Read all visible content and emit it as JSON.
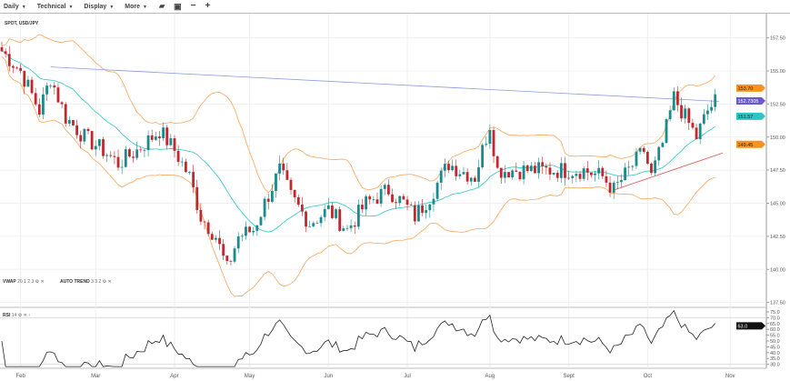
{
  "toolbar": {
    "menus": [
      "Daily",
      "Technical",
      "Display",
      "More"
    ],
    "icons": [
      "folder-open-icon",
      "save-icon",
      "zoom-out-icon",
      "zoom-in-icon"
    ]
  },
  "chart_data": {
    "type": "candlestick",
    "title": "SPOT, USD/JPY",
    "price_axis": {
      "ticks": [
        "157.50",
        "155.00",
        "152.50",
        "150.00",
        "147.50",
        "145.00",
        "142.50",
        "140.00",
        "137.50"
      ],
      "values": [
        157.5,
        155,
        152.5,
        150,
        147.5,
        145,
        142.5,
        140,
        137.5
      ]
    },
    "x_ticks": [
      "Feb",
      "Mar",
      "Apr",
      "May",
      "Jun",
      "Jul",
      "Aug",
      "Sept",
      "Oct",
      "Nov"
    ],
    "x_tick_days": [
      5,
      25,
      46,
      66,
      87,
      108,
      130,
      151,
      172,
      194
    ],
    "close_keypoints": [
      [
        0,
        156.5
      ],
      [
        5,
        155
      ],
      [
        10,
        152
      ],
      [
        13,
        154.5
      ],
      [
        17,
        151.5
      ],
      [
        22,
        150
      ],
      [
        27,
        149
      ],
      [
        31,
        148
      ],
      [
        36,
        149
      ],
      [
        42,
        150.5
      ],
      [
        46,
        149
      ],
      [
        50,
        147
      ],
      [
        53,
        144
      ],
      [
        57,
        142.5
      ],
      [
        60,
        140
      ],
      [
        63,
        142.5
      ],
      [
        67,
        143
      ],
      [
        70,
        145
      ],
      [
        74,
        147.5
      ],
      [
        77,
        145.5
      ],
      [
        82,
        143.5
      ],
      [
        87,
        144.5
      ],
      [
        92,
        143
      ],
      [
        97,
        145
      ],
      [
        103,
        146
      ],
      [
        107,
        145
      ],
      [
        110,
        144
      ],
      [
        114,
        145.5
      ],
      [
        119,
        148
      ],
      [
        122,
        147.5
      ],
      [
        126,
        147
      ],
      [
        130,
        151
      ],
      [
        132,
        147.5
      ],
      [
        140,
        147.5
      ],
      [
        148,
        147.5
      ],
      [
        155,
        147.5
      ],
      [
        160,
        147
      ],
      [
        163,
        146
      ],
      [
        167,
        147.5
      ],
      [
        171,
        149
      ],
      [
        173,
        147
      ],
      [
        176,
        149.5
      ],
      [
        179,
        153
      ],
      [
        183,
        151
      ],
      [
        185,
        150
      ],
      [
        188,
        152
      ],
      [
        190,
        152.7
      ]
    ],
    "price_tags": [
      {
        "value": "153.70",
        "price": 153.7,
        "color": "#f7931e"
      },
      {
        "value": "152.7305",
        "price": 152.7305,
        "color": "#6a5acd"
      },
      {
        "value": "151.57",
        "price": 151.57,
        "color": "#2ec4c4"
      },
      {
        "value": "149.45",
        "price": 149.45,
        "color": "#f7931e"
      }
    ],
    "trend_lines": [
      {
        "color": "#8a9ae6",
        "from": [
          13,
          155.3
        ],
        "to": [
          191,
          152.7
        ]
      },
      {
        "color": "#e05050",
        "from": [
          163,
          146
        ],
        "to": [
          192,
          148.8
        ]
      }
    ],
    "indicators": {
      "vwap": {
        "label": "VWAP",
        "params": "20 1 2 3"
      },
      "auto_trend": {
        "label": "AUTO TREND",
        "params": "3 3 2"
      },
      "rsi": {
        "label": "RSI",
        "params": "14",
        "current": "63.0",
        "ticks": [
          "75.0",
          "70.0",
          "65.0",
          "60.0",
          "55.0",
          "50.0",
          "45.0",
          "40.0",
          "35.0",
          "30.0"
        ],
        "tick_values": [
          75,
          70,
          65,
          60,
          55,
          50,
          45,
          40,
          35,
          30
        ]
      }
    },
    "colors": {
      "up": "#1a8a8a",
      "down": "#c0282d",
      "bollinger": "#f7a55a",
      "ma": "#2ec4c4"
    }
  }
}
